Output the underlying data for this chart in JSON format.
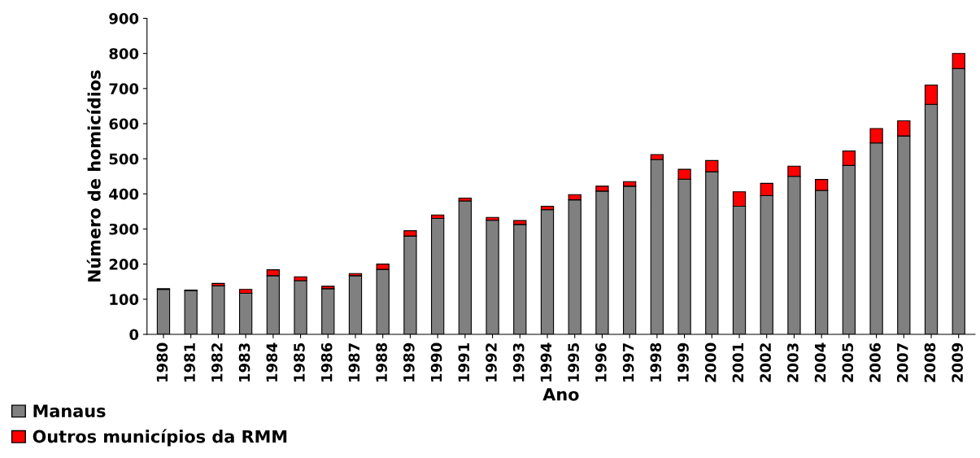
{
  "chart_data": {
    "type": "bar",
    "stacked": true,
    "xlabel": "Ano",
    "ylabel": "Número de homicídios",
    "categories": [
      "1980",
      "1981",
      "1982",
      "1983",
      "1984",
      "1985",
      "1986",
      "1987",
      "1988",
      "1989",
      "1990",
      "1991",
      "1992",
      "1993",
      "1994",
      "1995",
      "1996",
      "1997",
      "1998",
      "1999",
      "2000",
      "2001",
      "2002",
      "2003",
      "2004",
      "2005",
      "2006",
      "2007",
      "2008",
      "2009"
    ],
    "series": [
      {
        "name": "Manaus",
        "color": "#808080",
        "values": [
          128,
          124,
          138,
          117,
          167,
          153,
          130,
          167,
          185,
          280,
          330,
          380,
          325,
          313,
          355,
          383,
          408,
          422,
          498,
          442,
          463,
          365,
          395,
          450,
          410,
          481,
          545,
          565,
          655,
          757
        ]
      },
      {
        "name": "Outros municípios da RMM",
        "color": "#ff0000",
        "values": [
          2,
          2,
          7,
          11,
          17,
          11,
          7,
          6,
          15,
          15,
          10,
          8,
          8,
          11,
          10,
          15,
          14,
          13,
          14,
          28,
          32,
          41,
          35,
          29,
          31,
          41,
          41,
          43,
          55,
          43
        ]
      }
    ],
    "ylim": [
      0,
      900
    ],
    "yticks": [
      0,
      100,
      200,
      300,
      400,
      500,
      600,
      700,
      800,
      900
    ],
    "grid": false,
    "legend": "bottom left"
  }
}
